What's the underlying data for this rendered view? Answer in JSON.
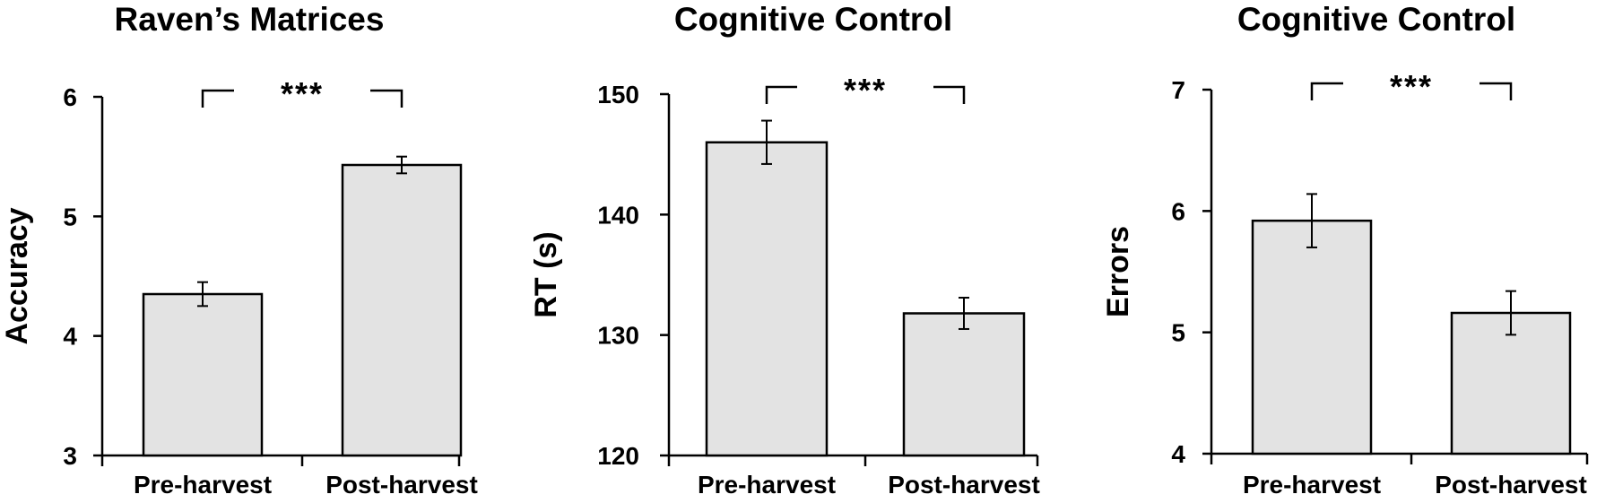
{
  "chart_data": [
    {
      "type": "bar",
      "title": "Raven’s Matrices",
      "xlabel": "",
      "ylabel": "Accuracy",
      "categories": [
        "Pre-harvest",
        "Post-harvest"
      ],
      "values": [
        4.35,
        5.43
      ],
      "errors": [
        0.1,
        0.07
      ],
      "ylim": [
        3,
        6
      ],
      "yticks": [
        3,
        4,
        5,
        6
      ],
      "significance": "***",
      "grid": false,
      "bar_color": "#e3e3e3"
    },
    {
      "type": "bar",
      "title": "Cognitive Control",
      "xlabel": "",
      "ylabel": "RT (s)",
      "categories": [
        "Pre-harvest",
        "Post-harvest"
      ],
      "values": [
        146,
        131.8
      ],
      "errors": [
        1.8,
        1.3
      ],
      "ylim": [
        120,
        150
      ],
      "yticks": [
        120,
        130,
        140,
        150
      ],
      "significance": "***",
      "grid": false,
      "bar_color": "#e3e3e3"
    },
    {
      "type": "bar",
      "title": "Cognitive Control",
      "xlabel": "",
      "ylabel": "Errors",
      "categories": [
        "Pre-harvest",
        "Post-harvest"
      ],
      "values": [
        5.92,
        5.16
      ],
      "errors": [
        0.22,
        0.18
      ],
      "ylim": [
        4,
        7
      ],
      "yticks": [
        4,
        5,
        6,
        7
      ],
      "significance": "***",
      "grid": false,
      "bar_color": "#e3e3e3"
    }
  ]
}
